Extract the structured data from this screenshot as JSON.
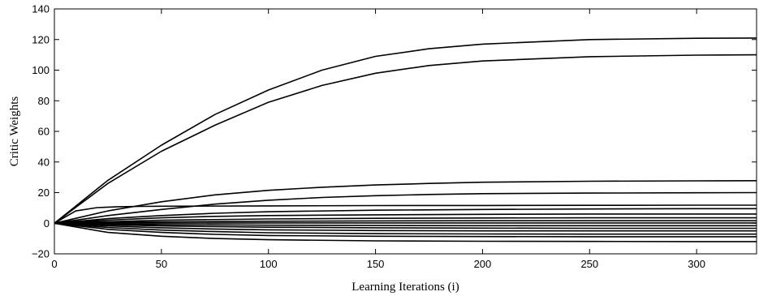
{
  "chart_data": {
    "type": "line",
    "title": "",
    "xlabel": "Learning Iterations (i)",
    "ylabel": "Critic Weights",
    "xlim": [
      0,
      328
    ],
    "ylim": [
      -20,
      140
    ],
    "xticks": [
      0,
      50,
      100,
      150,
      200,
      250,
      300
    ],
    "yticks": [
      -20,
      0,
      20,
      40,
      60,
      80,
      100,
      120,
      140
    ],
    "grid": false,
    "legend": "none",
    "line_color": "#000000",
    "series": [
      {
        "x": [
          0,
          25,
          50,
          75,
          100,
          125,
          150,
          175,
          200,
          250,
          300,
          328
        ],
        "values": [
          0,
          28,
          51,
          71,
          87,
          100,
          109,
          114,
          117,
          120,
          120.8,
          121
        ]
      },
      {
        "x": [
          0,
          25,
          50,
          75,
          100,
          125,
          150,
          175,
          200,
          250,
          300,
          328
        ],
        "values": [
          0,
          26,
          47,
          64,
          79,
          90,
          98,
          103,
          106,
          108.8,
          109.8,
          110
        ]
      },
      {
        "x": [
          0,
          25,
          50,
          75,
          100,
          125,
          150,
          175,
          200,
          250,
          300,
          328
        ],
        "values": [
          0,
          8,
          14,
          18.5,
          21.5,
          23.5,
          25,
          26,
          26.8,
          27.4,
          27.7,
          27.8
        ]
      },
      {
        "x": [
          0,
          25,
          50,
          75,
          100,
          125,
          150,
          175,
          200,
          250,
          300,
          328
        ],
        "values": [
          0,
          5,
          9,
          12.5,
          15,
          16.8,
          18,
          18.8,
          19.3,
          19.7,
          19.9,
          20
        ]
      },
      {
        "x": [
          0,
          10,
          20,
          30,
          40,
          50,
          100,
          150,
          200,
          250,
          300,
          328
        ],
        "values": [
          0,
          8,
          10.2,
          10.8,
          11,
          11.1,
          11.3,
          11.5,
          11.6,
          11.7,
          11.8,
          11.8
        ]
      },
      {
        "x": [
          0,
          25,
          50,
          75,
          100,
          150,
          200,
          250,
          300,
          328
        ],
        "values": [
          0,
          3,
          5,
          6.5,
          7.5,
          8.5,
          9,
          9.3,
          9.5,
          9.5
        ]
      },
      {
        "x": [
          0,
          25,
          50,
          75,
          100,
          150,
          200,
          250,
          300,
          328
        ],
        "values": [
          0,
          2,
          3.5,
          4.5,
          5,
          5.5,
          5.8,
          6,
          6,
          6
        ]
      },
      {
        "x": [
          0,
          25,
          50,
          100,
          150,
          200,
          250,
          300,
          328
        ],
        "values": [
          0,
          1,
          2,
          2.8,
          3.2,
          3.4,
          3.5,
          3.5,
          3.5
        ]
      },
      {
        "x": [
          0,
          25,
          50,
          100,
          150,
          200,
          250,
          300,
          328
        ],
        "values": [
          0,
          0.5,
          0.9,
          1.3,
          1.5,
          1.6,
          1.6,
          1.6,
          1.6
        ]
      },
      {
        "x": [
          0,
          50,
          100,
          200,
          328
        ],
        "values": [
          0,
          0.1,
          0.2,
          0.2,
          0.2
        ]
      },
      {
        "x": [
          0,
          25,
          50,
          100,
          150,
          200,
          250,
          300,
          328
        ],
        "values": [
          0,
          -0.5,
          -0.9,
          -1.3,
          -1.5,
          -1.6,
          -1.6,
          -1.6,
          -1.6
        ]
      },
      {
        "x": [
          0,
          25,
          50,
          100,
          150,
          200,
          250,
          300,
          328
        ],
        "values": [
          0,
          -1,
          -1.8,
          -2.6,
          -3,
          -3.2,
          -3.3,
          -3.3,
          -3.3
        ]
      },
      {
        "x": [
          0,
          25,
          50,
          75,
          100,
          150,
          200,
          250,
          300,
          328
        ],
        "values": [
          0,
          -1.8,
          -3,
          -3.8,
          -4.3,
          -4.8,
          -5,
          -5,
          -5,
          -5
        ]
      },
      {
        "x": [
          0,
          25,
          50,
          75,
          100,
          150,
          200,
          250,
          300,
          328
        ],
        "values": [
          0,
          -2.8,
          -4.5,
          -5.5,
          -6.2,
          -6.8,
          -7,
          -7.1,
          -7.1,
          -7.1
        ]
      },
      {
        "x": [
          0,
          25,
          50,
          75,
          100,
          150,
          200,
          250,
          300,
          328
        ],
        "values": [
          0,
          -4,
          -6,
          -7.3,
          -8,
          -8.5,
          -8.7,
          -8.8,
          -8.8,
          -8.8
        ]
      },
      {
        "x": [
          0,
          25,
          50,
          75,
          100,
          150,
          200,
          250,
          300,
          328
        ],
        "values": [
          0,
          -6,
          -8.5,
          -10,
          -10.8,
          -11.5,
          -11.8,
          -11.9,
          -12,
          -12
        ]
      }
    ]
  }
}
